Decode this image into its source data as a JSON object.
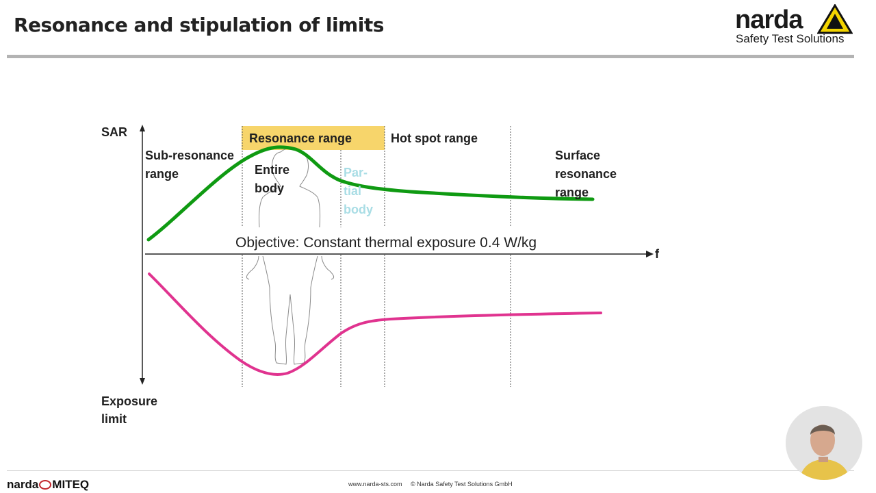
{
  "slide": {
    "title": "Resonance and stipulation of limits"
  },
  "logo": {
    "word": "narda",
    "tagline": "Safety Test Solutions"
  },
  "diagram": {
    "y_axis_top_label": "SAR",
    "y_axis_bottom_label_line1": "Exposure",
    "y_axis_bottom_label_line2": "limit",
    "x_axis_label": "f",
    "regions": {
      "sub_resonance_line1": "Sub-resonance",
      "sub_resonance_line2": "range",
      "resonance": "Resonance range",
      "entire_body_line1": "Entire",
      "entire_body_line2": "body",
      "partial_body_line1": "Par-",
      "partial_body_line2": "tial",
      "partial_body_line3": "body",
      "hot_spot": "Hot spot range",
      "surface_line1": "Surface",
      "surface_line2": "resonance",
      "surface_line3": "range"
    },
    "objective": "Objective: Constant thermal exposure 0.4 W/kg",
    "colors": {
      "sar_curve": "#0f9a12",
      "limit_curve": "#e0338f",
      "resonance_highlight": "#f7d56b",
      "partial_body_text": "#a9dde5"
    }
  },
  "footer": {
    "logo_left": "narda",
    "logo_right": "MITEQ",
    "url": "www.narda-sts.com",
    "copyright": "© Narda Safety Test Solutions GmbH"
  }
}
